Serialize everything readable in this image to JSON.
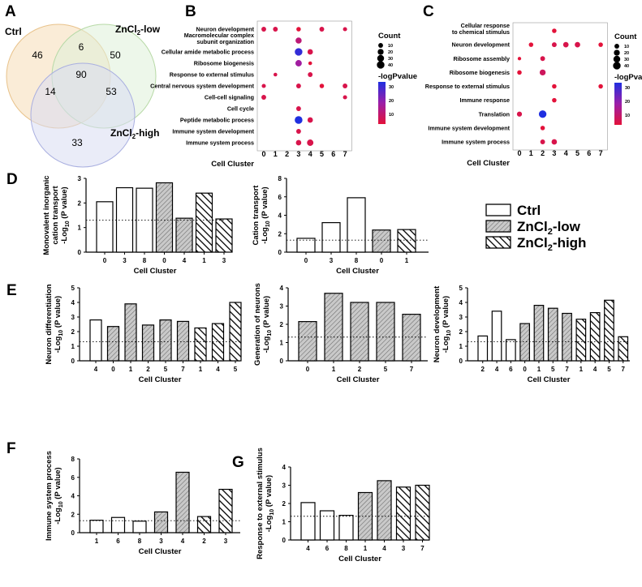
{
  "panels": {
    "A": "A",
    "B": "B",
    "C": "C",
    "D": "D",
    "E": "E",
    "F": "F",
    "G": "G"
  },
  "venn": {
    "ctrl_label": "Ctrl",
    "low_label": "ZnCl2-low",
    "high_label": "ZnCl2-high",
    "counts": {
      "ctrl_only": "46",
      "low_only": "50",
      "high_only": "33",
      "ctrl_low": "6",
      "ctrl_high": "14",
      "low_high": "53",
      "all": "90"
    },
    "colors": {
      "ctrl": "#f6dcb6",
      "low": "#dff0d8",
      "high": "#d9dcf3"
    }
  },
  "dotplots": [
    {
      "id": "B",
      "terms": [
        "Neuron development",
        "Macromolecular complex\nsubunit organization",
        "Cellular amide metabolic process",
        "Ribosome biogenesis",
        "Response to external stimulus",
        "Central nervous system development",
        "Cell-cell signaling",
        "Cell cycle",
        "Peptide metabolic process",
        "Immune system development",
        "Immune system process"
      ],
      "clusters": [
        "0",
        "1",
        "2",
        "3",
        "4",
        "5",
        "6",
        "7"
      ],
      "xlabel": "Cell Cluster",
      "points": [
        [
          0,
          0,
          10,
          10
        ],
        [
          0,
          1,
          10,
          10
        ],
        [
          0,
          3,
          8,
          8
        ],
        [
          0,
          5,
          10,
          10
        ],
        [
          0,
          7,
          6,
          10
        ],
        [
          1,
          3,
          22,
          15
        ],
        [
          2,
          3,
          40,
          32
        ],
        [
          2,
          4,
          15,
          10
        ],
        [
          3,
          3,
          25,
          20
        ],
        [
          3,
          4,
          4,
          8
        ],
        [
          4,
          1,
          4,
          10
        ],
        [
          4,
          4,
          10,
          10
        ],
        [
          5,
          0,
          6,
          10
        ],
        [
          5,
          3,
          10,
          10
        ],
        [
          5,
          5,
          8,
          8
        ],
        [
          5,
          7,
          10,
          10
        ],
        [
          6,
          0,
          10,
          10
        ],
        [
          6,
          7,
          6,
          10
        ],
        [
          7,
          3,
          10,
          10
        ],
        [
          8,
          3,
          42,
          34
        ],
        [
          8,
          4,
          15,
          10
        ],
        [
          9,
          3,
          10,
          10
        ],
        [
          10,
          3,
          15,
          10
        ],
        [
          10,
          4,
          25,
          10
        ]
      ],
      "legend": {
        "count_title": "Count",
        "counts": [
          "10",
          "20",
          "30",
          "40"
        ],
        "color_title": "-logPvalue",
        "color_ticks": [
          "30",
          "20",
          "10"
        ]
      }
    },
    {
      "id": "C",
      "terms": [
        "Cellular response\nto chemical stimulus",
        "Neuron development",
        "Ribosome assembly",
        "Ribosome biogenesis",
        "Response to external stimulus",
        "Immune response",
        "Translation",
        "Immune system development",
        "Immune system process"
      ],
      "clusters": [
        "0",
        "1",
        "2",
        "3",
        "4",
        "5",
        "6",
        "7"
      ],
      "xlabel": "Cell Cluster",
      "points": [
        [
          0,
          3,
          8,
          8
        ],
        [
          1,
          1,
          8,
          8
        ],
        [
          1,
          3,
          10,
          10
        ],
        [
          1,
          4,
          15,
          10
        ],
        [
          1,
          5,
          15,
          10
        ],
        [
          1,
          7,
          8,
          8
        ],
        [
          2,
          0,
          3,
          8
        ],
        [
          2,
          2,
          10,
          10
        ],
        [
          3,
          0,
          8,
          8
        ],
        [
          3,
          2,
          20,
          12
        ],
        [
          4,
          3,
          8,
          8
        ],
        [
          4,
          7,
          8,
          8
        ],
        [
          5,
          3,
          8,
          8
        ],
        [
          6,
          0,
          12,
          10
        ],
        [
          6,
          2,
          40,
          34
        ],
        [
          7,
          2,
          8,
          8
        ],
        [
          8,
          2,
          10,
          10
        ],
        [
          8,
          3,
          15,
          10
        ]
      ],
      "legend": {
        "count_title": "Count",
        "counts": [
          "10",
          "20",
          "30",
          "40"
        ],
        "color_title": "-logPvalue",
        "color_ticks": [
          "30",
          "20",
          "10"
        ]
      }
    }
  ],
  "legend_bars": {
    "ctrl": "Ctrl",
    "low": "ZnCl2-low",
    "high": "ZnCl2-high"
  },
  "y_common": "-Log10 (P value)",
  "xlabel": "Cell Cluster",
  "chart_data": [
    {
      "id": "D1",
      "type": "bar",
      "ylabel": "Monovalent inorganic\ncation transport",
      "ylim": [
        0,
        3
      ],
      "yticks": [
        0,
        1,
        2,
        3
      ],
      "threshold": 1.3,
      "categories": [
        "0",
        "3",
        "8",
        "0",
        "4",
        "1",
        "3"
      ],
      "values": [
        2.05,
        2.62,
        2.6,
        2.82,
        1.38,
        2.4,
        1.35
      ],
      "groups": [
        "ctrl",
        "ctrl",
        "ctrl",
        "low",
        "low",
        "high",
        "high"
      ]
    },
    {
      "id": "D2",
      "type": "bar",
      "ylabel": "Cation transport",
      "ylim": [
        0,
        8
      ],
      "yticks": [
        0,
        2,
        4,
        6,
        8
      ],
      "threshold": 1.3,
      "categories": [
        "0",
        "3",
        "8",
        "0",
        "1"
      ],
      "values": [
        1.5,
        3.2,
        5.9,
        2.4,
        2.45
      ],
      "groups": [
        "ctrl",
        "ctrl",
        "ctrl",
        "low",
        "high"
      ]
    },
    {
      "id": "E1",
      "type": "bar",
      "ylabel": "Neuron differentiation",
      "ylim": [
        0,
        5
      ],
      "yticks": [
        0,
        1,
        2,
        3,
        4,
        5
      ],
      "threshold": 1.3,
      "categories": [
        "4",
        "0",
        "1",
        "2",
        "5",
        "7",
        "1",
        "4",
        "5"
      ],
      "values": [
        2.8,
        2.35,
        3.9,
        2.45,
        2.8,
        2.7,
        2.25,
        2.55,
        4.0
      ],
      "groups": [
        "ctrl",
        "low",
        "low",
        "low",
        "low",
        "low",
        "high",
        "high",
        "high"
      ]
    },
    {
      "id": "E2",
      "type": "bar",
      "ylabel": "Generation of neurons",
      "ylim": [
        0,
        4
      ],
      "yticks": [
        0,
        1,
        2,
        3,
        4
      ],
      "threshold": 1.3,
      "categories": [
        "0",
        "1",
        "2",
        "5",
        "7"
      ],
      "values": [
        2.15,
        3.7,
        3.2,
        3.2,
        2.55
      ],
      "groups": [
        "low",
        "low",
        "low",
        "low",
        "low"
      ]
    },
    {
      "id": "E3",
      "type": "bar",
      "ylabel": "Neuron development",
      "ylim": [
        0,
        5
      ],
      "yticks": [
        0,
        1,
        2,
        3,
        4,
        5
      ],
      "threshold": 1.3,
      "categories": [
        "2",
        "4",
        "6",
        "0",
        "1",
        "5",
        "7",
        "1",
        "4",
        "5",
        "7"
      ],
      "values": [
        1.7,
        3.4,
        1.45,
        2.55,
        3.8,
        3.6,
        3.25,
        2.85,
        3.3,
        4.15,
        1.65
      ],
      "groups": [
        "ctrl",
        "ctrl",
        "ctrl",
        "low",
        "low",
        "low",
        "low",
        "high",
        "high",
        "high",
        "high"
      ]
    },
    {
      "id": "F",
      "type": "bar",
      "ylabel": "Immune system process",
      "ylim": [
        0,
        8
      ],
      "yticks": [
        0,
        2,
        4,
        6,
        8
      ],
      "threshold": 1.3,
      "categories": [
        "1",
        "6",
        "8",
        "3",
        "4",
        "2",
        "3"
      ],
      "values": [
        1.35,
        1.65,
        1.25,
        2.25,
        6.55,
        1.75,
        4.7
      ],
      "groups": [
        "ctrl",
        "ctrl",
        "ctrl",
        "low",
        "low",
        "high",
        "high"
      ]
    },
    {
      "id": "G",
      "type": "bar",
      "ylabel": "Response to external stimulus",
      "ylim": [
        0,
        4
      ],
      "yticks": [
        0,
        1,
        2,
        3,
        4
      ],
      "threshold": 1.3,
      "categories": [
        "4",
        "6",
        "8",
        "1",
        "4",
        "3",
        "7"
      ],
      "values": [
        2.05,
        1.6,
        1.35,
        2.6,
        3.25,
        2.9,
        3.0
      ],
      "groups": [
        "ctrl",
        "ctrl",
        "ctrl",
        "low",
        "low",
        "high",
        "high"
      ]
    }
  ]
}
